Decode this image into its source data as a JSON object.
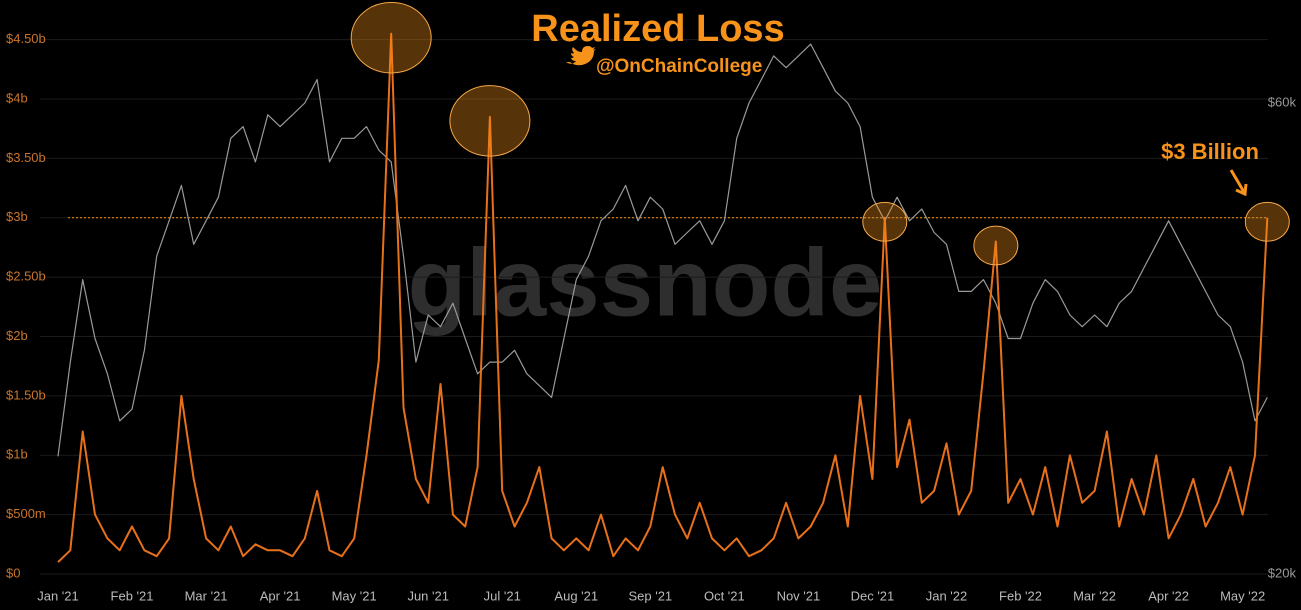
{
  "chart_data": {
    "type": "line",
    "title": "Realized Loss",
    "subtitle": "@OnChainCollege",
    "watermark": "glassnode",
    "annotation": "$3 Billion",
    "categories": [
      "Jan '21",
      null,
      null,
      null,
      null,
      null,
      "Feb '21",
      null,
      null,
      null,
      null,
      null,
      "Mar '21",
      null,
      null,
      null,
      null,
      null,
      "Apr '21",
      null,
      null,
      null,
      null,
      null,
      "May '21",
      null,
      null,
      null,
      null,
      null,
      "Jun '21",
      null,
      null,
      null,
      null,
      null,
      "Jul '21",
      null,
      null,
      null,
      null,
      null,
      "Aug '21",
      null,
      null,
      null,
      null,
      null,
      "Sep '21",
      null,
      null,
      null,
      null,
      null,
      "Oct '21",
      null,
      null,
      null,
      null,
      null,
      "Nov '21",
      null,
      null,
      null,
      null,
      null,
      "Dec '21",
      null,
      null,
      null,
      null,
      null,
      "Jan '22",
      null,
      null,
      null,
      null,
      null,
      "Feb '22",
      null,
      null,
      null,
      null,
      null,
      "Mar '22",
      null,
      null,
      null,
      null,
      null,
      "Apr '22",
      null,
      null,
      null,
      null,
      null,
      "May '22",
      null,
      null
    ],
    "series": [
      {
        "color": "#e8701a",
        "values": [
          0.1,
          0.2,
          1.2,
          0.5,
          0.3,
          0.2,
          0.4,
          0.2,
          0.15,
          0.3,
          1.5,
          0.8,
          0.3,
          0.2,
          0.4,
          0.15,
          0.25,
          0.2,
          0.2,
          0.15,
          0.3,
          0.7,
          0.2,
          0.15,
          0.3,
          1.0,
          1.8,
          4.55,
          1.4,
          0.8,
          0.6,
          1.6,
          0.5,
          0.4,
          0.9,
          3.85,
          0.7,
          0.4,
          0.6,
          0.9,
          0.3,
          0.2,
          0.3,
          0.2,
          0.5,
          0.15,
          0.3,
          0.2,
          0.4,
          0.9,
          0.5,
          0.3,
          0.6,
          0.3,
          0.2,
          0.3,
          0.15,
          0.2,
          0.3,
          0.6,
          0.3,
          0.4,
          0.6,
          1.0,
          0.4,
          1.5,
          0.8,
          3.0,
          0.9,
          1.3,
          0.6,
          0.7,
          1.1,
          0.5,
          0.7,
          1.7,
          2.8,
          0.6,
          0.8,
          0.5,
          0.9,
          0.4,
          1.0,
          0.6,
          0.7,
          1.2,
          0.4,
          0.8,
          0.5,
          1.0,
          0.3,
          0.5,
          0.8,
          0.4,
          0.6,
          0.9,
          0.5,
          1.0,
          3.0
        ]
      },
      {
        "color": "#9a9a9a",
        "axis": "y2",
        "values": [
          30,
          38,
          45,
          40,
          37,
          33,
          34,
          39,
          47,
          50,
          53,
          48,
          50,
          52,
          57,
          58,
          55,
          59,
          58,
          59,
          60,
          62,
          55,
          57,
          57,
          58,
          56,
          55,
          47,
          38,
          42,
          41,
          43,
          40,
          37,
          38,
          38,
          39,
          37,
          36,
          35,
          40,
          45,
          47,
          50,
          51,
          53,
          50,
          52,
          51,
          48,
          49,
          50,
          48,
          50,
          57,
          60,
          62,
          64,
          63,
          64,
          65,
          63,
          61,
          60,
          58,
          52,
          50,
          52,
          50,
          51,
          49,
          48,
          44,
          44,
          45,
          43,
          40,
          40,
          43,
          45,
          44,
          42,
          41,
          42,
          41,
          43,
          44,
          46,
          48,
          50,
          48,
          46,
          44,
          42,
          41,
          38,
          33,
          35
        ]
      }
    ],
    "hline": 3,
    "ylim": [
      0,
      4.75
    ],
    "yticks": [
      {
        "value": 0,
        "label": "$0"
      },
      {
        "value": 0.5,
        "label": "$500m"
      },
      {
        "value": 1,
        "label": "$1b"
      },
      {
        "value": 1.5,
        "label": "$1.50b"
      },
      {
        "value": 2,
        "label": "$2b"
      },
      {
        "value": 2.5,
        "label": "$2.50b"
      },
      {
        "value": 3,
        "label": "$3b"
      },
      {
        "value": 3.5,
        "label": "$3.50b"
      },
      {
        "value": 4,
        "label": "$4b"
      },
      {
        "value": 4.5,
        "label": "$4.50b"
      }
    ],
    "y2lim": [
      20,
      67.9
    ],
    "y2ticks": [
      {
        "value": 20,
        "label": "$20k"
      },
      {
        "value": 60,
        "label": "$60k"
      }
    ],
    "grid": true
  }
}
